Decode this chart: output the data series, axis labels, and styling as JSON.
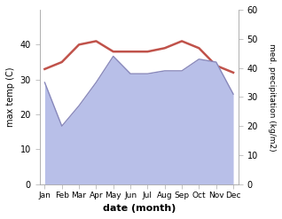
{
  "months": [
    "Jan",
    "Feb",
    "Mar",
    "Apr",
    "May",
    "Jun",
    "Jul",
    "Aug",
    "Sep",
    "Oct",
    "Nov",
    "Dec"
  ],
  "month_indices": [
    0,
    1,
    2,
    3,
    4,
    5,
    6,
    7,
    8,
    9,
    10,
    11
  ],
  "temp": [
    33,
    35,
    40,
    41,
    38,
    38,
    38,
    39,
    41,
    39,
    34,
    32
  ],
  "precip": [
    35,
    20,
    27,
    35,
    44,
    38,
    38,
    39,
    39,
    43,
    42,
    31
  ],
  "temp_color": "#c0524a",
  "precip_line_color": "#8888bb",
  "precip_fill_color": "#b8bfe8",
  "ylabel_left": "max temp (C)",
  "ylabel_right": "med. precipitation (kg/m2)",
  "xlabel": "date (month)",
  "ylim_left": [
    0,
    50
  ],
  "ylim_right": [
    0,
    60
  ],
  "yticks_left": [
    0,
    10,
    20,
    30,
    40
  ],
  "yticks_right": [
    0,
    10,
    20,
    30,
    40,
    50,
    60
  ],
  "bg_color": "#ffffff",
  "figure_width": 3.18,
  "figure_height": 2.47,
  "dpi": 100
}
